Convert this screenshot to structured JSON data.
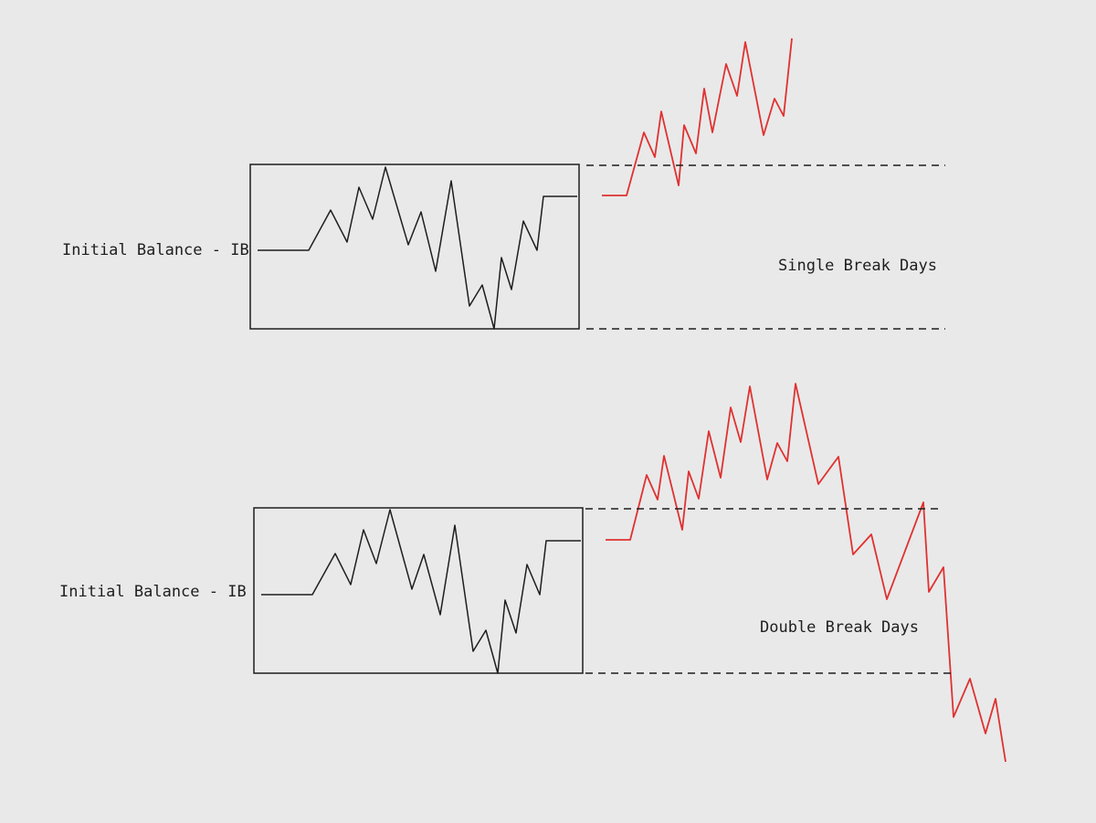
{
  "diagrams": [
    {
      "label": "Initial Balance - IB",
      "caption": "Single Break Days"
    },
    {
      "label": "Initial Balance - IB",
      "caption": "Double Break Days"
    }
  ]
}
